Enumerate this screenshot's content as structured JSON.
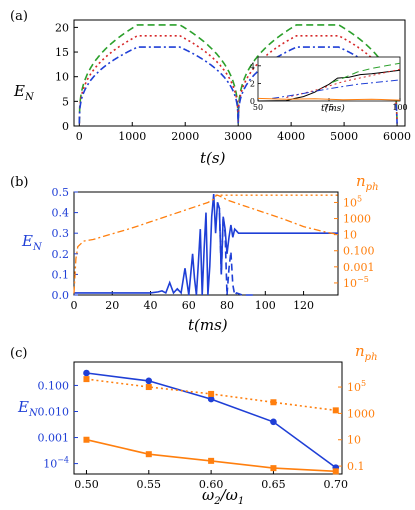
{
  "chart_data": [
    {
      "panel": "(a)",
      "type": "line",
      "xlabel": "t(s)",
      "ylabel": "E_N",
      "xlim": [
        -100,
        6150
      ],
      "ylim": [
        0,
        21.5
      ],
      "xticks": [
        "0",
        "1000",
        "2000",
        "3000",
        "4000",
        "5000",
        "6000"
      ],
      "yticks": [
        "0",
        "5",
        "10",
        "15",
        "20"
      ],
      "series": [
        {
          "style": "dashed",
          "color": "#2ca02c",
          "plateau": 20.5
        },
        {
          "style": "dotted",
          "color": "#d62728",
          "plateau": 18.3
        },
        {
          "style": "dashdot",
          "color": "#1f3fd6",
          "plateau": 16.0
        }
      ],
      "inset": {
        "xlabel": "t(ms)",
        "xticks": [
          "50",
          "75",
          "100"
        ],
        "yticks": [
          "0",
          "2",
          "4"
        ],
        "xlim": [
          50,
          100
        ],
        "ylim": [
          0,
          5
        ],
        "series": [
          {
            "color": "#000000",
            "style": "solid",
            "x": [
              50,
              60,
              63,
              66,
              70,
              72,
              75,
              78,
              82,
              86,
              90,
              95,
              100
            ],
            "y": [
              0,
              0.05,
              0.3,
              0.5,
              1.0,
              1.4,
              1.9,
              2.6,
              2.7,
              3.0,
              3.1,
              3.3,
              3.5
            ]
          },
          {
            "color": "#2ca02c",
            "style": "dashed",
            "x": [
              76,
              80,
              85,
              90,
              95,
              100
            ],
            "y": [
              2.1,
              2.6,
              3.3,
              3.7,
              4.0,
              4.3
            ]
          },
          {
            "color": "#d62728",
            "style": "dotted",
            "x": [
              60,
              70,
              80,
              90,
              100
            ],
            "y": [
              0.4,
              1.2,
              2.2,
              2.9,
              3.6
            ]
          },
          {
            "color": "#1f3fd6",
            "style": "dashdot",
            "x": [
              55,
              65,
              75,
              85,
              100
            ],
            "y": [
              0.3,
              0.8,
              1.4,
              1.9,
              2.4
            ]
          },
          {
            "color": "#ff7f0e",
            "style": "solid",
            "x": [
              50,
              60,
              70,
              80,
              90,
              100
            ],
            "y": [
              0.3,
              0.2,
              0.25,
              0.15,
              0.2,
              0.1
            ]
          }
        ]
      }
    },
    {
      "panel": "(b)",
      "type": "line",
      "xlabel": "t(ms)",
      "ylabel_left": "E_N",
      "ylabel_right": "n_ph",
      "xlim": [
        0,
        138
      ],
      "ylim": [
        0,
        0.5
      ],
      "right_ylim_log10": [
        -6.5,
        6.3
      ],
      "xticks": [
        "0",
        "20",
        "40",
        "60",
        "80",
        "100",
        "120"
      ],
      "yticks": [
        "0.0",
        "0.1",
        "0.2",
        "0.3",
        "0.4",
        "0.5"
      ],
      "right_yticks": [
        "10^-5",
        "0.001",
        "0.100",
        "10",
        "1000",
        "10^5"
      ],
      "series": [
        {
          "axis": "left",
          "style": "solid",
          "color": "#1f3fd6",
          "x": [
            0,
            40,
            44,
            46,
            48,
            50,
            52,
            54,
            56,
            58,
            60,
            62,
            63,
            64,
            65,
            66,
            67,
            68,
            69,
            70,
            71,
            72,
            73,
            74,
            75,
            76,
            77,
            78,
            79,
            80,
            81,
            82,
            83,
            84,
            85,
            86,
            87,
            88,
            90,
            92,
            95,
            100,
            110,
            120,
            138
          ],
          "y": [
            0.01,
            0.01,
            0.015,
            0.02,
            0.01,
            0.06,
            0.01,
            0.03,
            0.01,
            0.13,
            0.0,
            0.2,
            0.08,
            0.0,
            0.15,
            0.32,
            0.0,
            0.22,
            0.4,
            0.0,
            0.14,
            0.38,
            0.49,
            0.3,
            0.45,
            0.42,
            0.1,
            0.38,
            0.32,
            0.2,
            0.28,
            0.34,
            0.28,
            0.32,
            0.31,
            0.3,
            0.3,
            0.3,
            0.3,
            0.3,
            0.3,
            0.3,
            0.3,
            0.3,
            0.3
          ]
        },
        {
          "axis": "left",
          "style": "dashed",
          "color": "#1f3fd6",
          "x": [
            75,
            76,
            77,
            78,
            79,
            80,
            81,
            82,
            83,
            84,
            85,
            88,
            95
          ],
          "y": [
            0.45,
            0.42,
            0.1,
            0.38,
            0.3,
            0.0,
            0.13,
            0.21,
            0.05,
            0.0,
            0.01,
            0.0,
            0.0
          ]
        },
        {
          "axis": "right",
          "style": "dashdot",
          "color": "#ff7f0e",
          "x": [
            0,
            1,
            2,
            5,
            10,
            20,
            30,
            40,
            50,
            60,
            65,
            70,
            73,
            74,
            75,
            78,
            80,
            90,
            100,
            110,
            120,
            130,
            138
          ],
          "log10_y": [
            -6.3,
            -2.0,
            -0.5,
            0.2,
            0.4,
            1.1,
            1.8,
            2.6,
            3.4,
            4.2,
            4.6,
            5.0,
            5.4,
            5.8,
            5.9,
            5.6,
            5.3,
            4.5,
            3.7,
            2.9,
            2.0,
            1.4,
            1.0
          ]
        },
        {
          "axis": "right",
          "style": "dotted",
          "color": "#ff7f0e",
          "x": [
            74,
            80,
            90,
            100,
            110,
            120,
            130,
            138
          ],
          "log10_y": [
            5.9,
            5.9,
            5.9,
            5.9,
            5.9,
            5.9,
            5.9,
            5.9
          ]
        }
      ]
    },
    {
      "panel": "(c)",
      "type": "line",
      "xlabel": "ω2/ω1",
      "ylabel_left": "E_N",
      "ylabel_right": "n_ph",
      "xlim": [
        0.49,
        0.705
      ],
      "left_ylim_log10": [
        -4.4,
        -0.1
      ],
      "right_ylim_log10": [
        -1.6,
        6.9
      ],
      "xticks": [
        "0.50",
        "0.55",
        "0.60",
        "0.65",
        "0.70"
      ],
      "left_yticks": [
        "10^-4",
        "0.001",
        "0.010",
        "0.100"
      ],
      "right_yticks": [
        "0.1",
        "10",
        "1000",
        "10^5"
      ],
      "series": [
        {
          "axis": "left",
          "style": "solid",
          "color": "#1f3fd6",
          "marker": "circle",
          "x": [
            0.5,
            0.55,
            0.6,
            0.65,
            0.7
          ],
          "y": [
            0.3,
            0.15,
            0.03,
            0.004,
            7e-05
          ]
        },
        {
          "axis": "right",
          "style": "dotted",
          "color": "#ff7f0e",
          "marker": "square",
          "x": [
            0.5,
            0.55,
            0.6,
            0.65,
            0.7
          ],
          "y": [
            400000,
            100000,
            30000,
            7000,
            1700
          ]
        },
        {
          "axis": "right",
          "style": "solid",
          "color": "#ff7f0e",
          "marker": "square",
          "x": [
            0.5,
            0.55,
            0.6,
            0.65,
            0.7
          ],
          "y": [
            10,
            0.8,
            0.25,
            0.07,
            0.04
          ]
        }
      ]
    }
  ]
}
